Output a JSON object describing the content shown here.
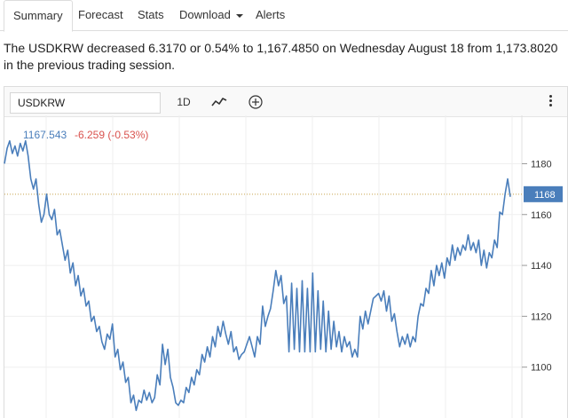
{
  "tabs": [
    {
      "label": "Summary",
      "active": true
    },
    {
      "label": "Forecast",
      "active": false
    },
    {
      "label": "Stats",
      "active": false
    },
    {
      "label": "Download",
      "active": false
    },
    {
      "label": "Alerts",
      "active": false
    }
  ],
  "summary": "The USDKRW decreased 6.3170 or 0.54% to 1,167.4850 on Wednesday August 18 from 1,173.8020 in the previous trading session.",
  "toolbar": {
    "symbol": "USDKRW",
    "period": "1D",
    "chart_type_icon": "line-chart-icon",
    "add_icon": "plus-circle-icon",
    "more_icon": "more-vertical-icon"
  },
  "quote": {
    "price": "1167.543",
    "change": "-6.259 (-0.53%)"
  },
  "colors": {
    "line": "#4a7ebb",
    "current_label_bg": "#4a7ebb",
    "change_negative": "#d9534f",
    "current_line": "#c8a24a"
  },
  "chart_data": {
    "type": "line",
    "ylim": [
      1080,
      1199
    ],
    "y_ticks": [
      1100,
      1120,
      1140,
      1160,
      1180
    ],
    "y_tick_labels": [
      "1100",
      "1120",
      "1140",
      "1160",
      "1180"
    ],
    "current_value": 1168,
    "current_label": "1168",
    "series": [
      {
        "values": [
          1180,
          1186,
          1189,
          1184,
          1187,
          1183,
          1188,
          1185,
          1189,
          1183,
          1174,
          1170,
          1174,
          1164,
          1157,
          1160,
          1168,
          1160,
          1158,
          1162,
          1152,
          1154,
          1148,
          1142,
          1146,
          1137,
          1141,
          1132,
          1136,
          1128,
          1131,
          1124,
          1126,
          1118,
          1120,
          1114,
          1116,
          1110,
          1107,
          1113,
          1111,
          1117,
          1104,
          1107,
          1099,
          1102,
          1094,
          1096,
          1086,
          1089,
          1083,
          1087,
          1086,
          1091,
          1087,
          1090,
          1086,
          1088,
          1097,
          1093,
          1109,
          1101,
          1107,
          1096,
          1092,
          1086,
          1085,
          1087,
          1086,
          1092,
          1090,
          1096,
          1093,
          1099,
          1097,
          1105,
          1102,
          1108,
          1104,
          1112,
          1108,
          1116,
          1112,
          1118,
          1113,
          1109,
          1114,
          1106,
          1108,
          1103,
          1105,
          1106,
          1109,
          1112,
          1108,
          1104,
          1112,
          1109,
          1124,
          1116,
          1120,
          1123,
          1130,
          1138,
          1132,
          1136,
          1125,
          1128,
          1106,
          1133,
          1107,
          1131,
          1106,
          1134,
          1106,
          1131,
          1106,
          1137,
          1106,
          1130,
          1107,
          1126,
          1106,
          1122,
          1107,
          1118,
          1108,
          1114,
          1106,
          1112,
          1108,
          1110,
          1104,
          1107,
          1104,
          1120,
          1115,
          1122,
          1117,
          1122,
          1127,
          1128,
          1129,
          1126,
          1130,
          1122,
          1128,
          1118,
          1121,
          1114,
          1108,
          1112,
          1109,
          1113,
          1108,
          1112,
          1110,
          1120,
          1125,
          1124,
          1131,
          1129,
          1138,
          1132,
          1140,
          1136,
          1141,
          1135,
          1143,
          1140,
          1148,
          1142,
          1147,
          1144,
          1148,
          1146,
          1152,
          1146,
          1149,
          1145,
          1150,
          1140,
          1146,
          1139,
          1145,
          1143,
          1150,
          1147,
          1161,
          1160,
          1168,
          1174,
          1167
        ]
      }
    ]
  }
}
